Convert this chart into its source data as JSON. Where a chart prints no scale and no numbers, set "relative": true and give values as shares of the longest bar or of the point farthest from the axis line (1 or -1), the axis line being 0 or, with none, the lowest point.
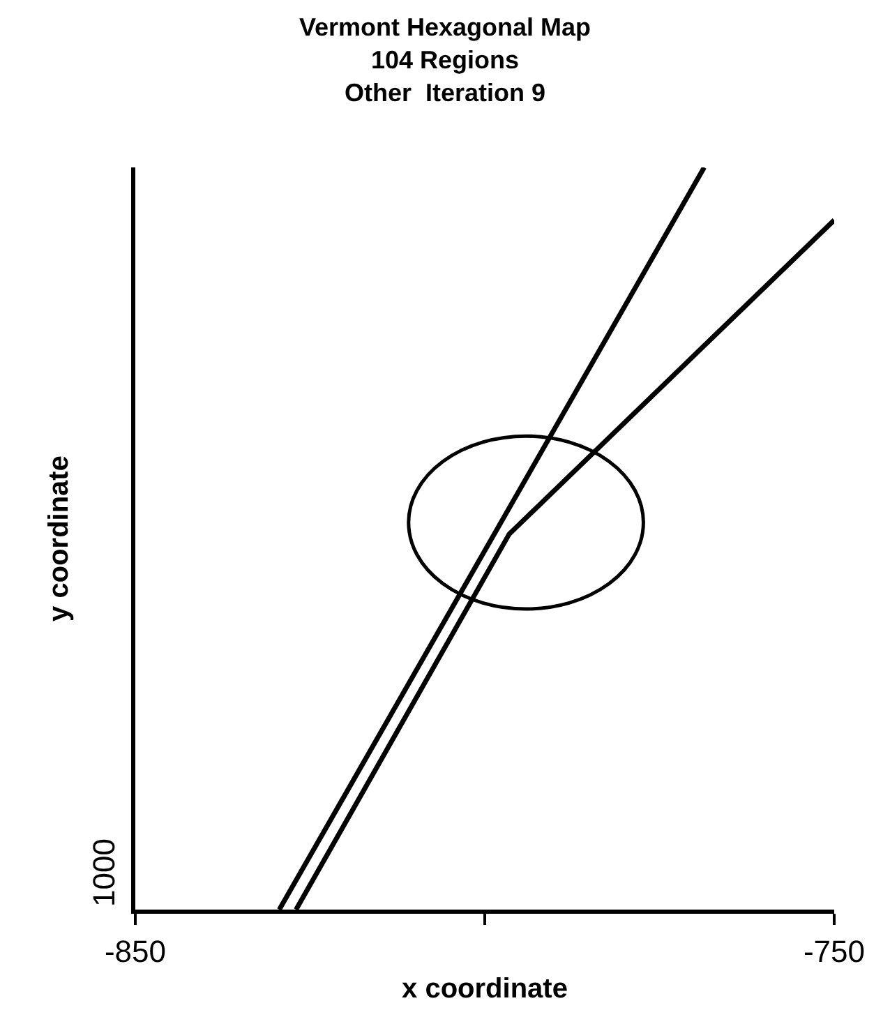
{
  "chart_data": {
    "type": "line",
    "title": "Vermont Hexagonal Map\n104 Regions\nOther  Iteration 9",
    "xlabel": "x coordinate",
    "ylabel": "y coordinate",
    "relative": true,
    "xlim": [
      -850,
      -750
    ],
    "xticks": [
      -850,
      {
        "value": -800,
        "label": null
      },
      -750
    ],
    "annotations": [
      "1000"
    ],
    "marker": "none",
    "line_style": "solid",
    "series": [
      {
        "color": "#000000",
        "x": [
          -829.4,
          -768.6
        ],
        "values": [
          0,
          1
        ]
      },
      {
        "color": "#000000",
        "x": [
          -827.0,
          -796.5,
          -750.0
        ],
        "values": [
          0,
          0.506,
          0.929
        ]
      }
    ]
  }
}
